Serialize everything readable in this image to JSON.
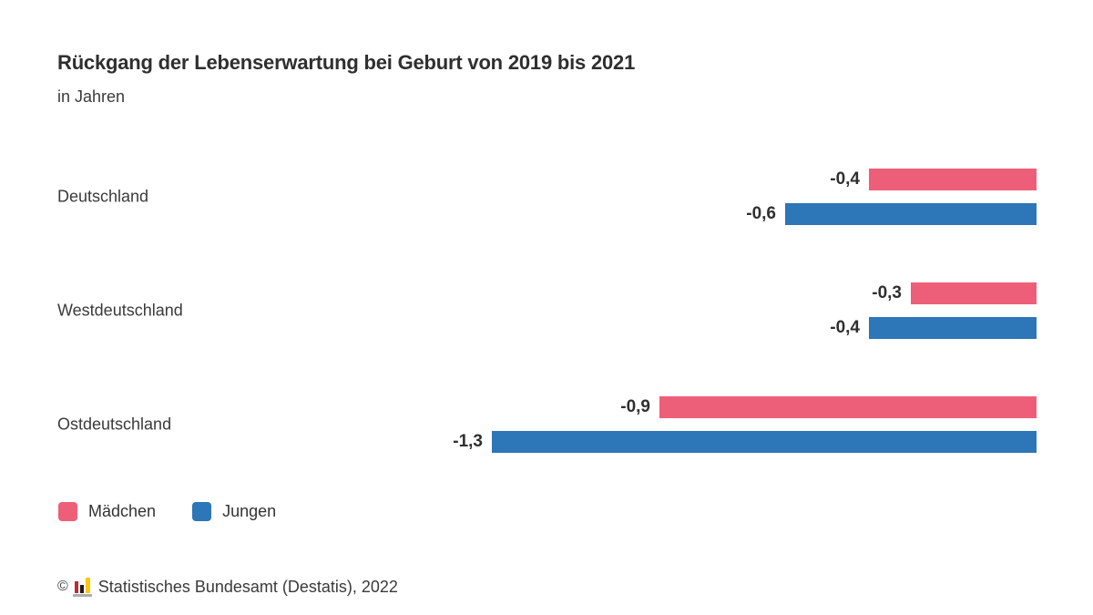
{
  "header": {
    "title": "Rückgang der Lebenserwartung bei Geburt von 2019 bis 2021",
    "subtitle": "in Jahren"
  },
  "chart_data": {
    "type": "bar",
    "orientation": "horizontal",
    "value_anchor": "right",
    "title": "Rückgang der Lebenserwartung bei Geburt von 2019 bis 2021",
    "unit_label": "in Jahren",
    "categories": [
      "Deutschland",
      "Westdeutschland",
      "Ostdeutschland"
    ],
    "series": [
      {
        "name": "Mädchen",
        "color": "#ED5F78",
        "values": [
          -0.4,
          -0.3,
          -0.9
        ],
        "value_labels": [
          "-0,4",
          "-0,3",
          "-0,9"
        ]
      },
      {
        "name": "Jungen",
        "color": "#2D76B8",
        "values": [
          -0.6,
          -0.4,
          -1.3
        ],
        "value_labels": [
          "-0,6",
          "-0,4",
          "-1,3"
        ]
      }
    ],
    "xlim": [
      -1.3,
      0
    ],
    "grid": false,
    "axis_visible": false,
    "legend_position": "bottom-left"
  },
  "footer": {
    "copyright": "©",
    "source": "Statistisches Bundesamt (Destatis), 2022",
    "logo": {
      "name": "destatis-logo",
      "bar_red": "#BE2A2A",
      "bar_black": "#1d1d1d",
      "bar_gold": "#FFC709",
      "base_grey": "#ADADAD"
    }
  }
}
